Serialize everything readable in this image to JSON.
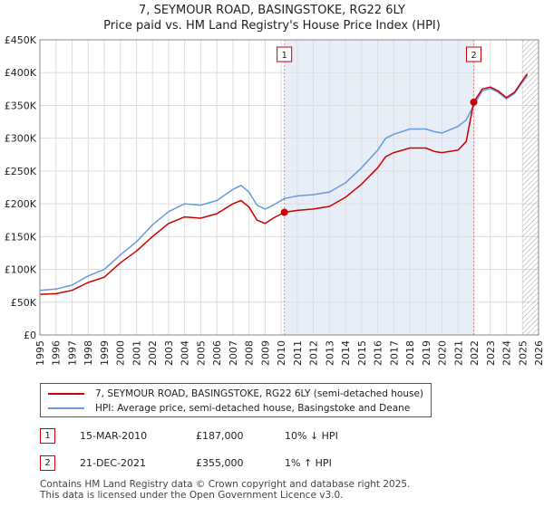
{
  "title_line1": "7, SEYMOUR ROAD, BASINGSTOKE, RG22 6LY",
  "title_line2": "Price paid vs. HM Land Registry's House Price Index (HPI)",
  "colors": {
    "property": "#cc0000",
    "hpi": "#6699dd",
    "shade": "#e8eef8",
    "grid": "#dddddd",
    "marker_line": "#ee8888"
  },
  "legend": {
    "property_label": "7, SEYMOUR ROAD, BASINGSTOKE, RG22 6LY (semi-detached house)",
    "hpi_label": "HPI: Average price, semi-detached house, Basingstoke and Deane"
  },
  "transactions": [
    {
      "num": "1",
      "date": "15-MAR-2010",
      "price": "£187,000",
      "hpi": "10% ↓ HPI"
    },
    {
      "num": "2",
      "date": "21-DEC-2021",
      "price": "£355,000",
      "hpi": "1% ↑ HPI"
    }
  ],
  "footer": {
    "line1": "Contains HM Land Registry data © Crown copyright and database right 2025.",
    "line2": "This data is licensed under the Open Government Licence v3.0."
  },
  "chart_data": {
    "type": "line",
    "title": "7, SEYMOUR ROAD, BASINGSTOKE, RG22 6LY",
    "subtitle": "Price paid vs. HM Land Registry's House Price Index (HPI)",
    "xlim": [
      1995,
      2026
    ],
    "ylim": [
      0,
      450000
    ],
    "y_ticks": [
      0,
      50000,
      100000,
      150000,
      200000,
      250000,
      300000,
      350000,
      400000,
      450000
    ],
    "y_tick_labels": [
      "£0",
      "£50K",
      "£100K",
      "£150K",
      "£200K",
      "£250K",
      "£300K",
      "£350K",
      "£400K",
      "£450K"
    ],
    "x_ticks": [
      1995,
      1996,
      1997,
      1998,
      1999,
      2000,
      2001,
      2002,
      2003,
      2004,
      2005,
      2006,
      2007,
      2008,
      2009,
      2010,
      2011,
      2012,
      2013,
      2014,
      2015,
      2016,
      2017,
      2018,
      2019,
      2020,
      2021,
      2022,
      2023,
      2024,
      2025,
      2026
    ],
    "x_tick_labels": [
      "1995",
      "1996",
      "1997",
      "1998",
      "1999",
      "2000",
      "2001",
      "2002",
      "2003",
      "2004",
      "2005",
      "2006",
      "2007",
      "2008",
      "2009",
      "2010",
      "2011",
      "2012",
      "2013",
      "2014",
      "2015",
      "2016",
      "2017",
      "2018",
      "2019",
      "2020",
      "2021",
      "2022",
      "2023",
      "2024",
      "2025",
      "2026"
    ],
    "shaded_range": [
      2010.2,
      2021.97
    ],
    "markers": [
      {
        "label": "1",
        "x": 2010.2,
        "y": 187000
      },
      {
        "label": "2",
        "x": 2021.97,
        "y": 355000
      }
    ],
    "hatch_after": 2025.0,
    "series": [
      {
        "name": "7, SEYMOUR ROAD, BASINGSTOKE, RG22 6LY (semi-detached house)",
        "color": "#cc0000",
        "x": [
          1995.0,
          1996.0,
          1997.0,
          1998.0,
          1999.0,
          2000.0,
          2001.0,
          2002.0,
          2003.0,
          2004.0,
          2005.0,
          2006.0,
          2007.0,
          2007.5,
          2008.0,
          2008.5,
          2009.0,
          2009.5,
          2010.2,
          2011.0,
          2012.0,
          2013.0,
          2014.0,
          2015.0,
          2016.0,
          2016.5,
          2017.0,
          2018.0,
          2019.0,
          2019.5,
          2020.0,
          2021.0,
          2021.5,
          2021.97,
          2022.5,
          2023.0,
          2023.5,
          2024.0,
          2024.5,
          2025.0,
          2025.3
        ],
        "values": [
          62000,
          63000,
          68000,
          80000,
          88000,
          110000,
          128000,
          150000,
          170000,
          180000,
          178000,
          185000,
          200000,
          205000,
          195000,
          175000,
          170000,
          178000,
          187000,
          190000,
          192000,
          196000,
          210000,
          230000,
          255000,
          272000,
          278000,
          285000,
          285000,
          280000,
          278000,
          282000,
          295000,
          355000,
          375000,
          378000,
          372000,
          362000,
          370000,
          388000,
          398000
        ]
      },
      {
        "name": "HPI: Average price, semi-detached house, Basingstoke and Deane",
        "color": "#6699dd",
        "x": [
          1995.0,
          1996.0,
          1997.0,
          1998.0,
          1999.0,
          2000.0,
          2001.0,
          2002.0,
          2003.0,
          2004.0,
          2005.0,
          2006.0,
          2007.0,
          2007.5,
          2008.0,
          2008.5,
          2009.0,
          2009.5,
          2010.2,
          2011.0,
          2012.0,
          2013.0,
          2014.0,
          2015.0,
          2016.0,
          2016.5,
          2017.0,
          2018.0,
          2019.0,
          2019.5,
          2020.0,
          2021.0,
          2021.5,
          2021.97,
          2022.5,
          2023.0,
          2023.5,
          2024.0,
          2024.5,
          2025.0,
          2025.3
        ],
        "values": [
          68000,
          70000,
          76000,
          90000,
          100000,
          122000,
          142000,
          168000,
          188000,
          200000,
          198000,
          205000,
          222000,
          228000,
          218000,
          198000,
          192000,
          198000,
          208000,
          212000,
          214000,
          218000,
          232000,
          255000,
          282000,
          300000,
          306000,
          314000,
          314000,
          310000,
          308000,
          318000,
          328000,
          350000,
          372000,
          376000,
          370000,
          360000,
          368000,
          386000,
          396000
        ]
      }
    ]
  }
}
